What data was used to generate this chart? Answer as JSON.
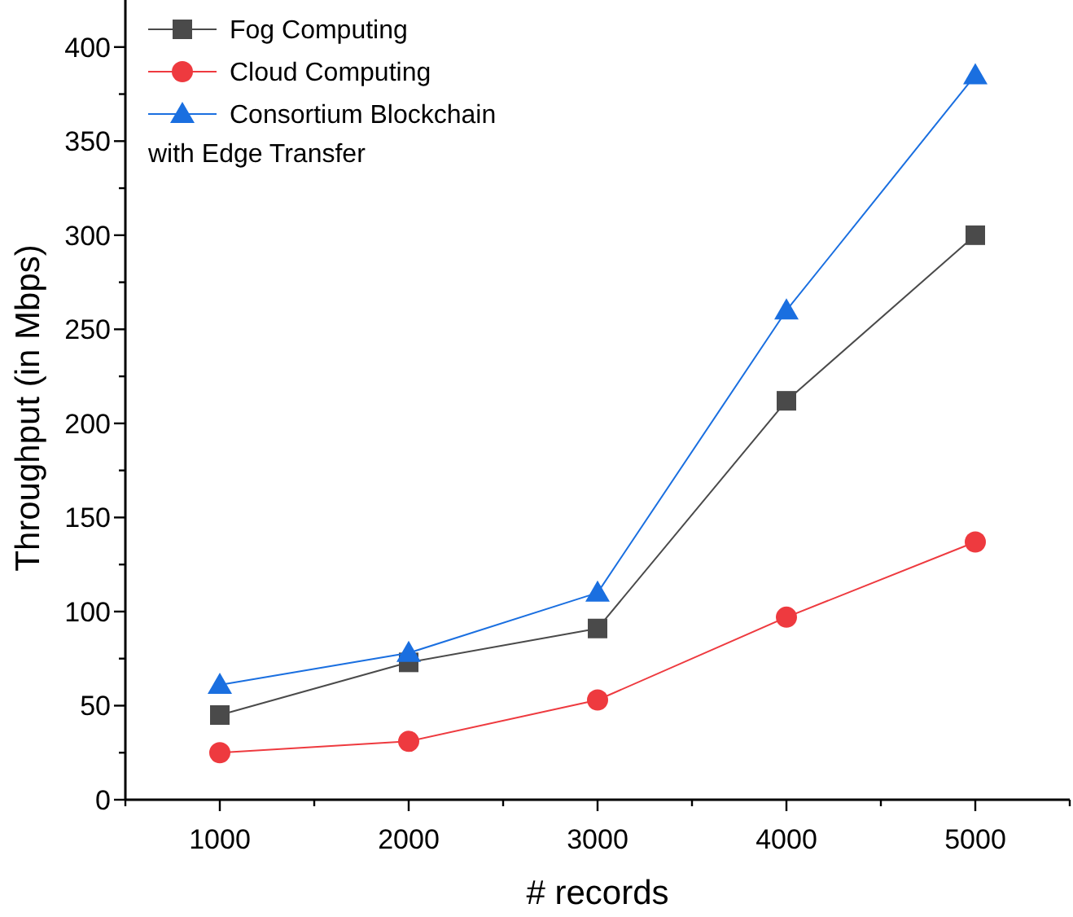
{
  "chart_data": {
    "type": "line",
    "xlabel": "# records",
    "ylabel": "Throughput (in Mbps)",
    "x": [
      1000,
      2000,
      3000,
      4000,
      5000
    ],
    "xlim": [
      500,
      5500
    ],
    "xticks": [
      {
        "value": 500,
        "label": null
      },
      1000,
      {
        "value": 1500,
        "label": null
      },
      2000,
      {
        "value": 2500,
        "label": null
      },
      3000,
      {
        "value": 3500,
        "label": null
      },
      4000,
      {
        "value": 4500,
        "label": null
      },
      5000,
      {
        "value": 5500,
        "label": null
      }
    ],
    "ylim": [
      0,
      425
    ],
    "yticks": [
      0,
      {
        "value": 25,
        "label": null
      },
      50,
      {
        "value": 75,
        "label": null
      },
      100,
      {
        "value": 125,
        "label": null
      },
      150,
      {
        "value": 175,
        "label": null
      },
      200,
      {
        "value": 225,
        "label": null
      },
      250,
      {
        "value": 275,
        "label": null
      },
      300,
      {
        "value": 325,
        "label": null
      },
      350,
      {
        "value": 375,
        "label": null
      },
      400
    ],
    "grid": false,
    "legend": "top left",
    "series": [
      {
        "name": "Fog Computing",
        "color": "#4a4a4a",
        "marker": "square",
        "values": [
          45,
          73,
          91,
          212,
          300
        ]
      },
      {
        "name": "Cloud Computing",
        "color": "#ee3a3f",
        "marker": "circle",
        "values": [
          25,
          31,
          53,
          97,
          137
        ]
      },
      {
        "name": "Consortium Blockchain with Edge Transfer",
        "color": "#1a6fe0",
        "marker": "triangle",
        "values": [
          61,
          78,
          110,
          260,
          385
        ]
      }
    ]
  }
}
